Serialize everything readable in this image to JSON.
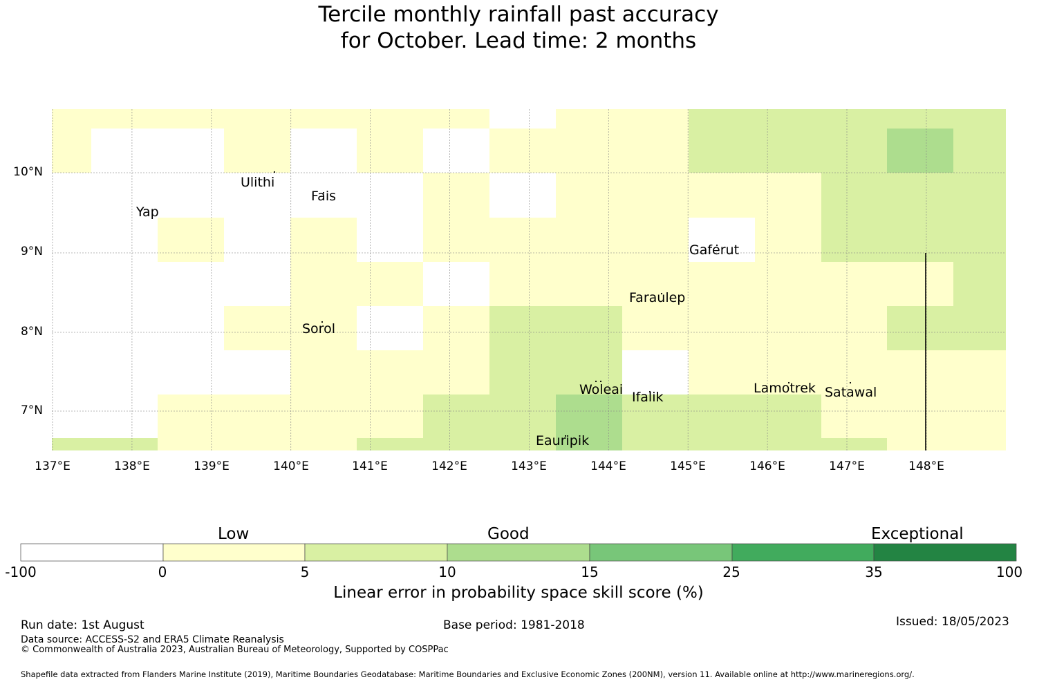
{
  "title": {
    "line1": "Tercile monthly rainfall past accuracy",
    "line2": "for October. Lead time: 2 months"
  },
  "map": {
    "lon_ticks": [
      "137°E",
      "138°E",
      "139°E",
      "140°E",
      "141°E",
      "142°E",
      "143°E",
      "144°E",
      "145°E",
      "146°E",
      "147°E",
      "148°E"
    ],
    "lat_ticks": [
      "10°N",
      "9°N",
      "8°N",
      "7°N"
    ],
    "places": [
      {
        "name": "Ulithi"
      },
      {
        "name": "Fais"
      },
      {
        "name": "Yap"
      },
      {
        "name": "Gaferut"
      },
      {
        "name": "Faraulep"
      },
      {
        "name": "Sorol"
      },
      {
        "name": "Woleai"
      },
      {
        "name": "Ifalik"
      },
      {
        "name": "Lamotrek"
      },
      {
        "name": "Satawal"
      },
      {
        "name": "Eauripik"
      }
    ],
    "colors": {
      "-100–0": "#ffffff",
      "0–5": "#ffffcc",
      "5–10": "#d9f0a3",
      "10–15": "#addd8e",
      "15–25": "#78c679",
      "25–35": "#41ab5d",
      "35–100": "#238443"
    }
  },
  "colorbar": {
    "categories": [
      "Low",
      "Good",
      "Exceptional"
    ],
    "ticks": [
      "-100",
      "0",
      "5",
      "10",
      "15",
      "25",
      "35",
      "100"
    ],
    "label": "Linear error in probability space skill score (%)"
  },
  "footer": {
    "run_date": "Run date: 1st August",
    "base_period": "Base period: 1981-2018",
    "issued": "Issued: 18/05/2023",
    "data_source": "Data source: ACCESS-S2 and ERA5 Climate Reanalysis",
    "copyright": "© Commonwealth of Australia 2023, Australian Bureau of Meteorology, Supported by COSPPac",
    "shapefile": "Shapefile data extracted from Flanders Marine Institute (2019), Maritime Boundaries Geodatabase: Maritime Boundaries and Exclusive Economic Zones (200NM), version 11. Available online at http://www.marineregions.org/."
  }
}
